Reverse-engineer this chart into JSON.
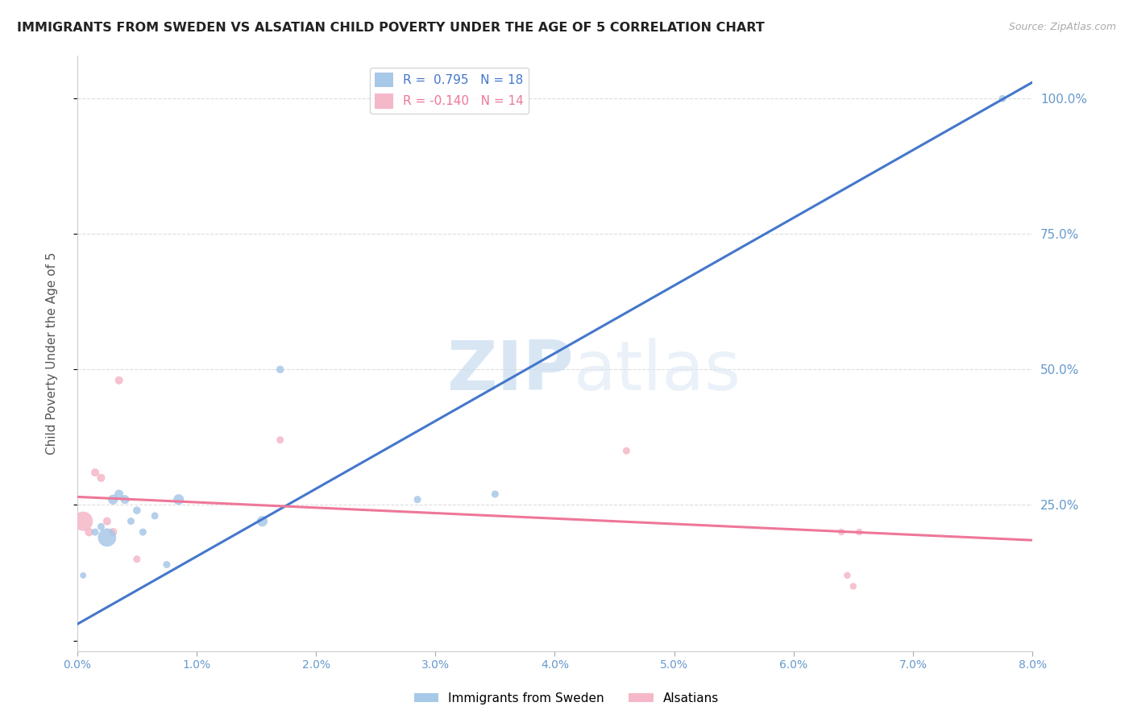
{
  "title": "IMMIGRANTS FROM SWEDEN VS ALSATIAN CHILD POVERTY UNDER THE AGE OF 5 CORRELATION CHART",
  "source": "Source: ZipAtlas.com",
  "ylabel": "Child Poverty Under the Age of 5",
  "xlim": [
    0.0,
    8.0
  ],
  "ylim": [
    -2.0,
    108.0
  ],
  "yticks": [
    0,
    25,
    50,
    75,
    100
  ],
  "ytick_labels": [
    "",
    "25.0%",
    "50.0%",
    "75.0%",
    "100.0%"
  ],
  "xticks": [
    0.0,
    1.0,
    2.0,
    3.0,
    4.0,
    5.0,
    6.0,
    7.0,
    8.0
  ],
  "blue_R": 0.795,
  "blue_N": 18,
  "pink_R": -0.14,
  "pink_N": 14,
  "blue_color": "#a8c8e8",
  "pink_color": "#f5b8c8",
  "blue_line_color": "#4477cc",
  "pink_line_color": "#ee7799",
  "background_color": "#ffffff",
  "watermark_zip": "ZIP",
  "watermark_atlas": "atlas",
  "blue_scatter_x": [
    0.05,
    0.15,
    0.2,
    0.25,
    0.3,
    0.35,
    0.4,
    0.45,
    0.5,
    0.55,
    0.65,
    0.75,
    0.85,
    1.55,
    1.7,
    2.85,
    3.5,
    7.75
  ],
  "blue_scatter_y": [
    12,
    20,
    21,
    19,
    26,
    27,
    26,
    22,
    24,
    20,
    23,
    14,
    26,
    22,
    50,
    26,
    27,
    100
  ],
  "blue_scatter_size": [
    25,
    35,
    35,
    250,
    70,
    55,
    55,
    35,
    40,
    35,
    35,
    35,
    80,
    80,
    40,
    35,
    35,
    35
  ],
  "pink_scatter_x": [
    0.05,
    0.1,
    0.15,
    0.2,
    0.25,
    0.3,
    0.35,
    0.5,
    1.7,
    4.6,
    6.4,
    6.45,
    6.5,
    6.55
  ],
  "pink_scatter_y": [
    22,
    20,
    31,
    30,
    22,
    20,
    48,
    15,
    37,
    35,
    20,
    12,
    10,
    20
  ],
  "pink_scatter_size": [
    280,
    50,
    45,
    45,
    45,
    45,
    45,
    35,
    35,
    35,
    30,
    30,
    30,
    30
  ],
  "blue_line_x": [
    0.0,
    8.0
  ],
  "blue_line_y": [
    3.0,
    103.0
  ],
  "pink_line_x": [
    0.0,
    8.0
  ],
  "pink_line_y": [
    26.5,
    18.5
  ],
  "legend_label_blue": "Immigrants from Sweden",
  "legend_label_pink": "Alsatians"
}
